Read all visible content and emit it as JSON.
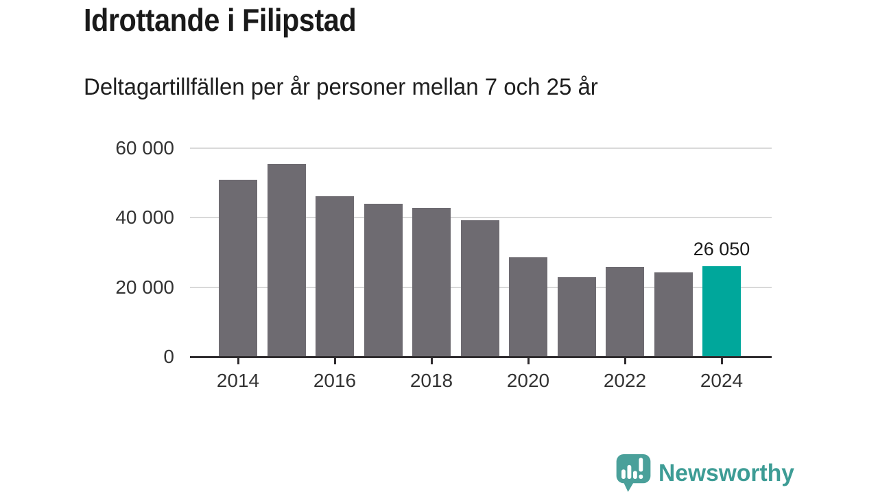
{
  "chart_data": {
    "type": "bar",
    "title": "Idrottande i Filipstad",
    "subtitle": "Deltagartillfällen per år personer mellan 7 och 25 år",
    "categories": [
      2014,
      2015,
      2016,
      2017,
      2018,
      2019,
      2020,
      2021,
      2022,
      2023,
      2024
    ],
    "values": [
      51000,
      55400,
      46200,
      44000,
      42900,
      39200,
      28700,
      22850,
      25800,
      24300,
      26050
    ],
    "highlight": {
      "index": 10,
      "label": "26 050",
      "category": 2024
    },
    "xlabel": "",
    "ylabel": "",
    "ylim": [
      0,
      60000
    ],
    "yticks": [
      {
        "value": 0,
        "label": "0"
      },
      {
        "value": 20000,
        "label": "20 000"
      },
      {
        "value": 40000,
        "label": "40 000"
      },
      {
        "value": 60000,
        "label": "60 000"
      }
    ],
    "xticks": [
      2014,
      2016,
      2018,
      2020,
      2022,
      2024
    ],
    "grid": true,
    "legend": "none",
    "colors": {
      "bar": "#6e6b71",
      "highlight": "#00a79b",
      "grid": "#d9d9d9",
      "axis": "#2f2c2f",
      "tick_text": "#333333",
      "title_text": "#1a1a1a",
      "value_label_text": "#1a1a1a"
    }
  },
  "footer": {
    "brand": "Newsworthy",
    "brand_color": "#3d9c95",
    "icon": "newsworthy-bar-chart-speech-bubble-icon",
    "icon_color": "#4aa09a",
    "icon_glyph_color": "#ffffff"
  }
}
